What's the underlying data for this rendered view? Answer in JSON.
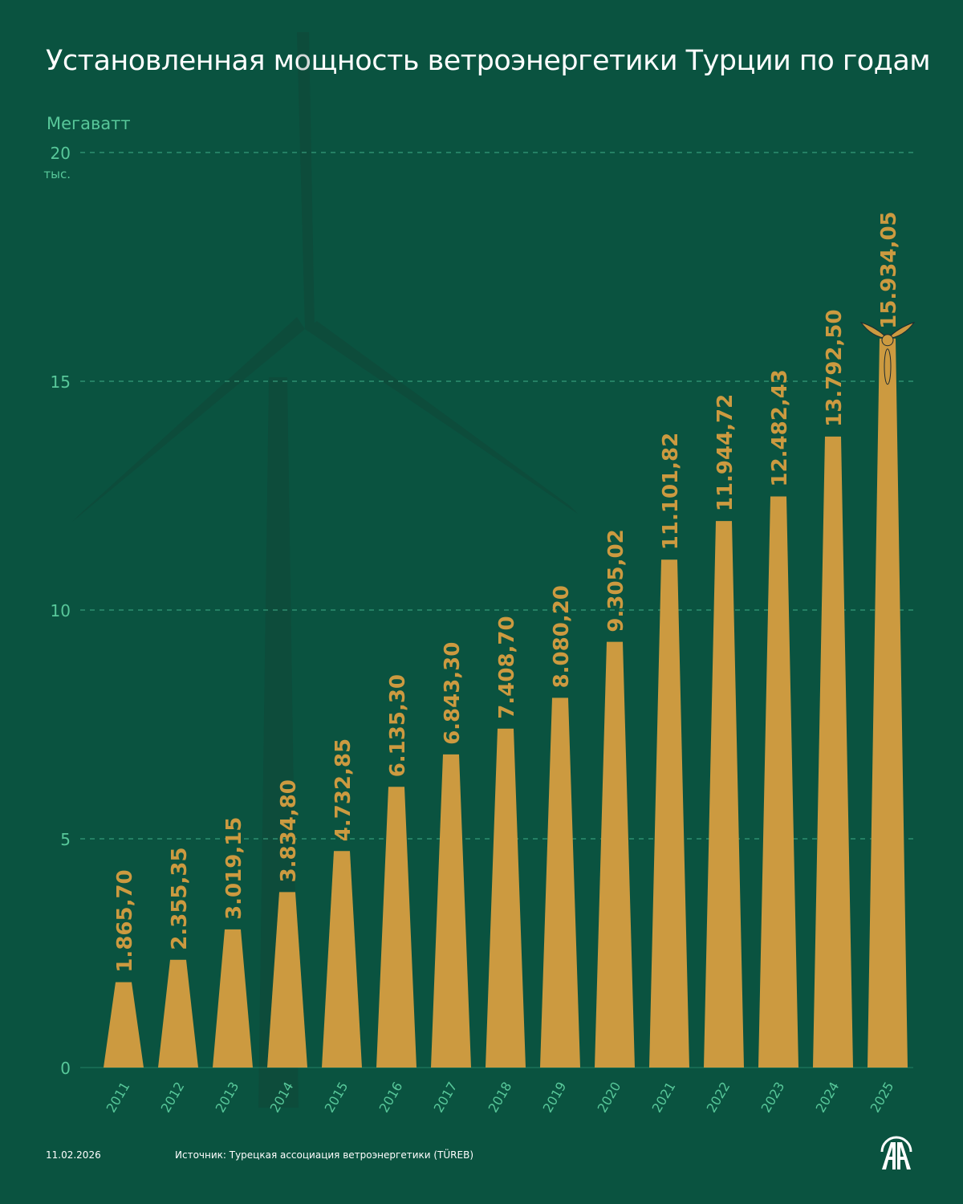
{
  "title": "Установленная мощность ветроэнергетики Турции по годам",
  "footer": {
    "date": "11.02.2026",
    "source": "Источник: Турецкая ассоциация ветроэнергетики (TÜREB)",
    "logo": "AA"
  },
  "colors": {
    "background": "#0a5340",
    "bar": "#cc9a40",
    "grid": "#3fae88",
    "axis_text": "#58c89a",
    "label": "#cc9a40"
  },
  "chart_data": {
    "type": "bar",
    "title": "Установленная мощность ветроэнергетики Турции по годам",
    "ylabel": "Мегаватт",
    "ytick_suffix": "тыс.",
    "ylim": [
      0,
      20
    ],
    "yticks": [
      "0",
      "5",
      "10",
      "15",
      "20"
    ],
    "grid": true,
    "categories": [
      "2011",
      "2012",
      "2013",
      "2014",
      "2015",
      "2016",
      "2017",
      "2018",
      "2019",
      "2020",
      "2021",
      "2022",
      "2023",
      "2024",
      "2025"
    ],
    "values": [
      1865.7,
      2355.35,
      3019.15,
      3834.8,
      4732.85,
      6135.3,
      6843.3,
      7408.7,
      8080.2,
      9305.02,
      11101.82,
      11944.72,
      12482.43,
      13792.5,
      15934.05
    ],
    "labels": [
      "1.865,70",
      "2.355,35",
      "3.019,15",
      "3.834,80",
      "4.732,85",
      "6.135,30",
      "6.843,30",
      "7.408,70",
      "8.080,20",
      "9.305,02",
      "11.101,82",
      "11.944,72",
      "12.482,43",
      "13.792,50",
      "15.934,05"
    ]
  }
}
